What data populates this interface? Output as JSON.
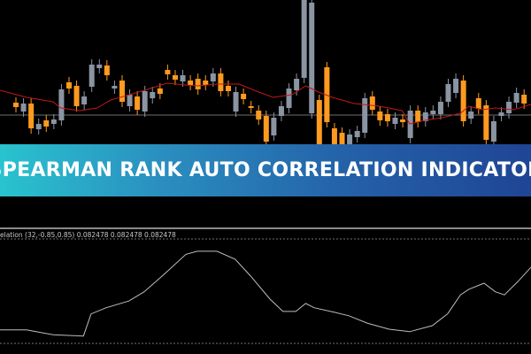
{
  "banner": {
    "title": "SPEARMAN RANK AUTO CORRELATION INDICATOR"
  },
  "indicator": {
    "label": "elation (32,-0.85,0.85) 0.082478 0.082478 0.082478"
  },
  "colors": {
    "bull": "#8a94a3",
    "bear": "#ff9a1f",
    "ma": "#c0181a",
    "indicator": "#bdbdbd",
    "level": "#9a9a9a"
  },
  "chart_data": [
    {
      "type": "candlestick",
      "title": "",
      "candles": [
        [
          84,
          79,
          "o"
        ],
        [
          83,
          74,
          "g"
        ],
        [
          83,
          55,
          "o"
        ],
        [
          60,
          54,
          "g"
        ],
        [
          64,
          57,
          "o"
        ],
        [
          65,
          60,
          "g"
        ],
        [
          99,
          64,
          "g"
        ],
        [
          107,
          100,
          "o"
        ],
        [
          103,
          80,
          "o"
        ],
        [
          91,
          82,
          "g"
        ],
        [
          127,
          102,
          "g"
        ],
        [
          127,
          123,
          "g"
        ],
        [
          126,
          115,
          "o"
        ],
        [
          103,
          100,
          "g"
        ],
        [
          109,
          85,
          "o"
        ],
        [
          93,
          80,
          "g"
        ],
        [
          91,
          76,
          "o"
        ],
        [
          97,
          74,
          "g"
        ],
        [
          96,
          89,
          "g"
        ],
        [
          100,
          94,
          "o"
        ],
        [
          121,
          116,
          "o"
        ],
        [
          115,
          110,
          "o"
        ],
        [
          115,
          108,
          "g"
        ],
        [
          109,
          104,
          "o"
        ],
        [
          111,
          99,
          "o"
        ],
        [
          109,
          104,
          "o"
        ],
        [
          117,
          108,
          "g"
        ],
        [
          117,
          97,
          "o"
        ],
        [
          103,
          97,
          "o"
        ],
        [
          96,
          74,
          "g"
        ],
        [
          94,
          88,
          "o"
        ],
        [
          80,
          78,
          "o"
        ],
        [
          75,
          65,
          "o"
        ],
        [
          69,
          40,
          "o"
        ],
        [
          67,
          47,
          "g"
        ],
        [
          80,
          69,
          "g"
        ],
        [
          100,
          78,
          "g"
        ],
        [
          111,
          98,
          "g"
        ],
        [
          200,
          112,
          "g"
        ],
        [
          197,
          72,
          "g"
        ],
        [
          87,
          37,
          "o"
        ],
        [
          124,
          62,
          "o"
        ],
        [
          55,
          37,
          "o"
        ],
        [
          50,
          37,
          "o"
        ],
        [
          48,
          37,
          "g"
        ],
        [
          52,
          45,
          "g"
        ],
        [
          89,
          50,
          "g"
        ],
        [
          91,
          76,
          "o"
        ],
        [
          74,
          64,
          "o"
        ],
        [
          71,
          63,
          "o"
        ],
        [
          67,
          60,
          "g"
        ],
        [
          65,
          62,
          "o"
        ],
        [
          75,
          44,
          "g"
        ],
        [
          75,
          62,
          "o"
        ],
        [
          73,
          63,
          "g"
        ],
        [
          75,
          71,
          "g"
        ],
        [
          85,
          71,
          "g"
        ],
        [
          105,
          85,
          "g"
        ],
        [
          111,
          95,
          "g"
        ],
        [
          109,
          63,
          "o"
        ],
        [
          74,
          66,
          "g"
        ],
        [
          89,
          77,
          "o"
        ],
        [
          81,
          42,
          "o"
        ],
        [
          63,
          40,
          "g"
        ],
        [
          73,
          69,
          "g"
        ],
        [
          85,
          72,
          "g"
        ],
        [
          95,
          84,
          "g"
        ],
        [
          93,
          83,
          "o"
        ]
      ],
      "moving_average": [
        [
          0,
          98
        ],
        [
          3.5,
          90
        ],
        [
          7,
          85
        ],
        [
          8,
          78
        ],
        [
          10.5,
          75
        ],
        [
          12.8,
          78
        ],
        [
          14.6,
          87
        ],
        [
          17.5,
          94
        ],
        [
          19.8,
          100
        ],
        [
          22,
          106
        ],
        [
          24.5,
          104
        ],
        [
          26,
          103
        ],
        [
          28.6,
          105
        ],
        [
          31.5,
          105
        ],
        [
          33.8,
          97
        ],
        [
          36,
          90
        ],
        [
          38.5,
          93
        ],
        [
          40.3,
          103
        ],
        [
          42,
          96
        ],
        [
          43.8,
          90
        ],
        [
          46.7,
          83
        ],
        [
          50,
          80
        ],
        [
          53,
          75
        ],
        [
          54,
          60
        ],
        [
          56,
          64
        ],
        [
          58.3,
          67
        ],
        [
          60.7,
          72
        ],
        [
          61.8,
          80
        ],
        [
          63.6,
          76
        ],
        [
          65.3,
          78
        ],
        [
          67.7,
          76
        ],
        [
          70,
          82
        ]
      ],
      "reference_level": 70
    },
    {
      "type": "line",
      "title": "",
      "levels": [
        0.85,
        -0.85
      ],
      "ylim": [
        -0.85,
        0.85
      ],
      "x": [
        0,
        3.5,
        7,
        11,
        12,
        14,
        17,
        19,
        21.6,
        24.5,
        26,
        28.6,
        31,
        33,
        35.6,
        37.3,
        39,
        40.3,
        41.4,
        44.3,
        46,
        48.4,
        51.3,
        54,
        57,
        59,
        60.7,
        61.8,
        63.8,
        65.3,
        66.5,
        68.3,
        70
      ],
      "values": [
        -0.63,
        -0.63,
        -0.71,
        -0.73,
        -0.37,
        -0.27,
        -0.16,
        -0.01,
        0.27,
        0.6,
        0.65,
        0.65,
        0.52,
        0.25,
        -0.13,
        -0.33,
        -0.33,
        -0.2,
        -0.27,
        -0.35,
        -0.4,
        -0.52,
        -0.62,
        -0.66,
        -0.56,
        -0.37,
        -0.06,
        0.03,
        0.13,
        -0.01,
        -0.06,
        0.16,
        0.39
      ]
    }
  ]
}
